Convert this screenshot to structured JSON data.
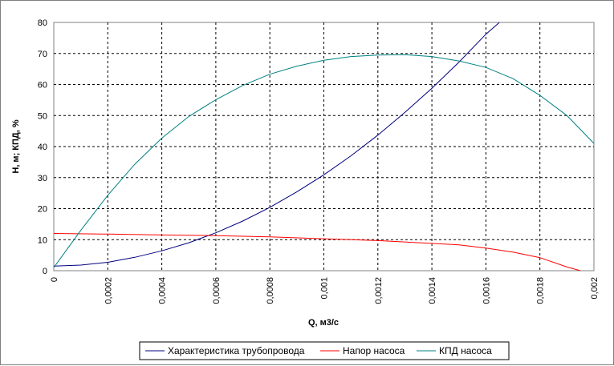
{
  "chart_data": {
    "type": "line",
    "xlabel": "Q, м3/с",
    "ylabel": "Н, м; КПД, %",
    "xlim": [
      0,
      0.002
    ],
    "ylim": [
      0,
      80
    ],
    "x_ticks": [
      "0",
      "0,0002",
      "0,0004",
      "0,0006",
      "0,0008",
      "0,001",
      "0,0012",
      "0,0014",
      "0,0016",
      "0,0018",
      "0,002"
    ],
    "y_ticks": [
      "0",
      "10",
      "20",
      "30",
      "40",
      "50",
      "60",
      "70",
      "80"
    ],
    "grid": true,
    "legend_position": "bottom",
    "series": [
      {
        "name": "Характеристика трубопровода",
        "color": "#000080",
        "x": [
          0,
          0.0001,
          0.0002,
          0.0003,
          0.0004,
          0.0005,
          0.0006,
          0.0007,
          0.0008,
          0.0009,
          0.001,
          0.0011,
          0.0012,
          0.0013,
          0.0014,
          0.0015,
          0.0016,
          0.00165
        ],
        "y": [
          1.5,
          1.8,
          2.7,
          4.3,
          6.4,
          9.0,
          12.2,
          16.0,
          20.4,
          25.4,
          30.9,
          37.0,
          43.7,
          51.0,
          58.8,
          67.2,
          76.2,
          80.0
        ]
      },
      {
        "name": "Напор насоса",
        "color": "#ff0000",
        "x": [
          0,
          0.0002,
          0.0004,
          0.0006,
          0.0008,
          0.001,
          0.0012,
          0.0014,
          0.0015,
          0.0016,
          0.0017,
          0.0018,
          0.0019,
          0.00195
        ],
        "y": [
          12.0,
          11.8,
          11.5,
          11.3,
          10.9,
          10.3,
          9.7,
          8.8,
          8.3,
          7.3,
          6.0,
          4.2,
          1.2,
          0.0
        ]
      },
      {
        "name": "КПД насоса",
        "color": "#008080",
        "x": [
          0,
          0.0001,
          0.0002,
          0.0003,
          0.0004,
          0.0005,
          0.0006,
          0.0007,
          0.0008,
          0.0009,
          0.001,
          0.0011,
          0.0012,
          0.0013,
          0.0014,
          0.0015,
          0.0016,
          0.0017,
          0.0018,
          0.0019,
          0.002
        ],
        "y": [
          1.0,
          13.0,
          24.3,
          34.3,
          42.7,
          49.7,
          55.1,
          59.7,
          63.3,
          65.9,
          67.8,
          69.0,
          69.5,
          69.6,
          69.0,
          67.6,
          65.5,
          61.9,
          56.5,
          50.0,
          41.0
        ]
      }
    ]
  }
}
